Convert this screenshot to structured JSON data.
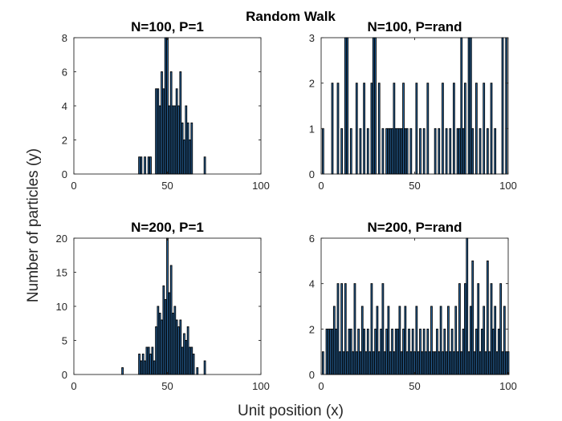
{
  "figure": {
    "title": "Random Walk",
    "xlabel": "Unit position (x)",
    "ylabel": "Number of particles (y)"
  },
  "colors": {
    "bar_fill": "#2b6ca8",
    "bar_edge": "#000000",
    "axes": "#262626"
  },
  "chart_data": [
    {
      "type": "bar",
      "title": "N=100, P=1",
      "xlim": [
        0,
        100
      ],
      "ylim": [
        0,
        8
      ],
      "xticks": [
        0,
        50,
        100
      ],
      "yticks": [
        0,
        2,
        4,
        6,
        8
      ],
      "x": [
        35,
        36,
        38,
        40,
        41,
        44,
        45,
        46,
        47,
        48,
        49,
        50,
        51,
        52,
        53,
        54,
        55,
        56,
        57,
        58,
        59,
        60,
        61,
        62,
        63,
        70
      ],
      "values": [
        1,
        1,
        1,
        1,
        1,
        5,
        5,
        4,
        6,
        5,
        8,
        8,
        4,
        6,
        4,
        4,
        5,
        4,
        6,
        3,
        2,
        4,
        3,
        2,
        3,
        1
      ]
    },
    {
      "type": "bar",
      "title": "N=100, P=rand",
      "xlim": [
        0,
        100
      ],
      "ylim": [
        0,
        3
      ],
      "xticks": [
        0,
        50,
        100
      ],
      "yticks": [
        0,
        1,
        2,
        3
      ],
      "x": [
        1,
        6,
        9,
        11,
        13,
        14,
        16,
        19,
        21,
        23,
        25,
        27,
        28,
        29,
        31,
        33,
        35,
        36,
        37,
        38,
        39,
        40,
        41,
        42,
        43,
        44,
        45,
        46,
        48,
        51,
        53,
        55,
        57,
        61,
        63,
        65,
        67,
        69,
        71,
        73,
        74,
        75,
        76,
        77,
        79,
        80,
        81,
        83,
        85,
        87,
        89,
        91,
        93,
        97,
        99
      ],
      "values": [
        1,
        2,
        2,
        1,
        3,
        3,
        1,
        2,
        1,
        2,
        1,
        2,
        3,
        3,
        2,
        1,
        1,
        1,
        1,
        1,
        2,
        1,
        1,
        1,
        1,
        2,
        1,
        1,
        1,
        2,
        1,
        1,
        2,
        1,
        1,
        2,
        1,
        1,
        2,
        1,
        1,
        3,
        1,
        2,
        3,
        3,
        1,
        2,
        1,
        2,
        1,
        2,
        1,
        3,
        3
      ]
    },
    {
      "type": "bar",
      "title": "N=200, P=1",
      "xlim": [
        0,
        100
      ],
      "ylim": [
        0,
        20
      ],
      "xticks": [
        0,
        50,
        100
      ],
      "yticks": [
        0,
        5,
        10,
        15,
        20
      ],
      "x": [
        26,
        35,
        36,
        37,
        38,
        39,
        40,
        41,
        42,
        43,
        44,
        45,
        46,
        47,
        48,
        49,
        50,
        51,
        52,
        53,
        54,
        55,
        56,
        57,
        58,
        59,
        60,
        61,
        62,
        63,
        64,
        66,
        70
      ],
      "values": [
        1,
        3,
        2,
        3,
        2,
        4,
        4,
        3,
        4,
        2,
        7,
        10,
        9,
        8,
        13,
        11,
        20,
        12,
        16,
        9,
        10,
        8,
        7,
        8,
        4,
        6,
        5,
        7,
        4,
        4,
        3,
        1,
        2
      ]
    },
    {
      "type": "bar",
      "title": "N=200, P=rand",
      "xlim": [
        0,
        100
      ],
      "ylim": [
        0,
        6
      ],
      "xticks": [
        0,
        50,
        100
      ],
      "yticks": [
        0,
        2,
        4,
        6
      ],
      "x": [
        1,
        3,
        4,
        5,
        6,
        7,
        8,
        9,
        10,
        11,
        12,
        13,
        14,
        15,
        16,
        17,
        18,
        19,
        20,
        21,
        22,
        23,
        24,
        25,
        26,
        27,
        28,
        29,
        30,
        31,
        32,
        33,
        34,
        35,
        36,
        37,
        38,
        39,
        40,
        41,
        42,
        43,
        44,
        45,
        46,
        47,
        48,
        49,
        50,
        51,
        52,
        53,
        54,
        55,
        56,
        57,
        58,
        59,
        60,
        61,
        62,
        63,
        64,
        65,
        66,
        67,
        68,
        69,
        70,
        71,
        72,
        73,
        74,
        75,
        76,
        77,
        78,
        79,
        80,
        81,
        82,
        83,
        84,
        85,
        86,
        87,
        88,
        89,
        90,
        91,
        92,
        93,
        94,
        95,
        96,
        97,
        98,
        99,
        100
      ],
      "values": [
        1,
        2,
        2,
        2,
        2,
        3,
        2,
        4,
        1,
        4,
        1,
        4,
        1,
        2,
        2,
        1,
        4,
        1,
        2,
        1,
        3,
        2,
        1,
        2,
        1,
        4,
        1,
        2,
        3,
        1,
        2,
        4,
        1,
        2,
        3,
        1,
        2,
        1,
        2,
        2,
        3,
        1,
        2,
        3,
        1,
        2,
        1,
        2,
        1,
        3,
        1,
        2,
        1,
        2,
        1,
        2,
        1,
        3,
        1,
        1,
        2,
        1,
        3,
        1,
        2,
        1,
        3,
        1,
        2,
        1,
        3,
        1,
        4,
        1,
        2,
        4,
        6,
        1,
        3,
        5,
        1,
        2,
        4,
        1,
        2,
        3,
        1,
        5,
        1,
        4,
        2,
        3,
        1,
        2,
        4,
        1,
        3,
        1,
        1
      ]
    }
  ]
}
